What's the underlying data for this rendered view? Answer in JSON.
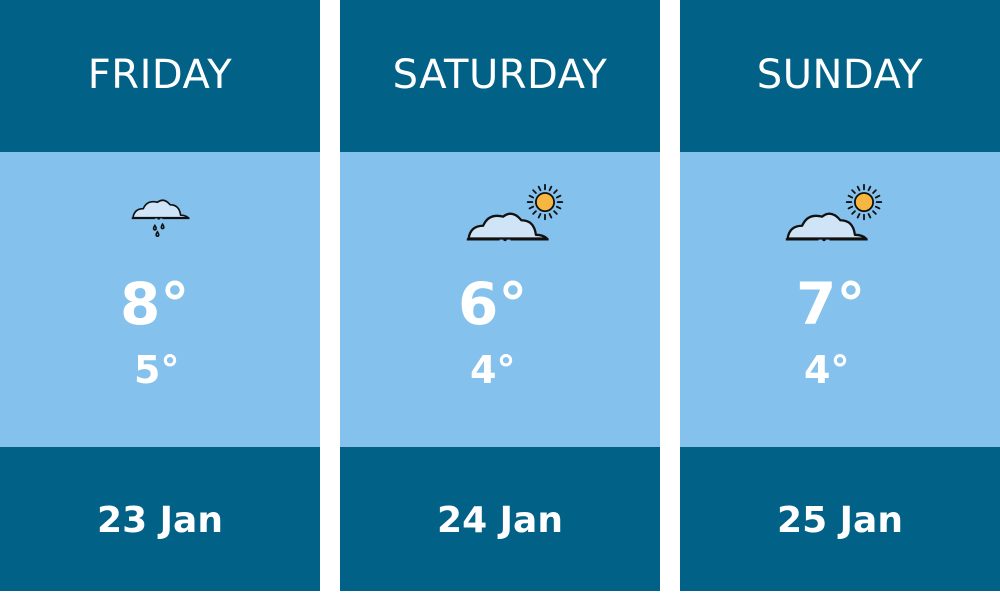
{
  "days": [
    {
      "name": "FRIDAY",
      "icon": "cloud-rain-icon",
      "high": "8°",
      "low": "5°",
      "date": "23 Jan"
    },
    {
      "name": "SATURDAY",
      "icon": "cloud-sun-icon",
      "high": "6°",
      "low": "4°",
      "date": "24 Jan"
    },
    {
      "name": "SUNDAY",
      "icon": "cloud-sun-icon",
      "high": "7°",
      "low": "4°",
      "date": "25 Jan"
    }
  ],
  "colors": {
    "header": "#016187",
    "body": "#84c1ed",
    "sun": "#f6b642",
    "cloud": "#cfe4f6"
  }
}
